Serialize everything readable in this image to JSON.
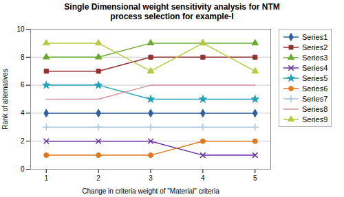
{
  "chart_data": {
    "type": "line",
    "title": "Single Dimensional weight sensitivity analysis for NTM\nprocess selection for example-I",
    "xlabel": "Change in criteria weight of \"Material\" criteria",
    "ylabel": "Rank of alternatives",
    "x": [
      1,
      2,
      3,
      4,
      5
    ],
    "series": [
      {
        "name": "Series1",
        "values": [
          4,
          4,
          4,
          4,
          4
        ],
        "color": "#2e5fa3",
        "marker": "diamond"
      },
      {
        "name": "Series2",
        "values": [
          7,
          7,
          8,
          8,
          8
        ],
        "color": "#943030",
        "marker": "square"
      },
      {
        "name": "Series3",
        "values": [
          8,
          8,
          9,
          9,
          9
        ],
        "color": "#6aaa30",
        "marker": "triangle"
      },
      {
        "name": "Series4",
        "values": [
          2,
          2,
          2,
          1,
          1
        ],
        "color": "#6a30a8",
        "marker": "x"
      },
      {
        "name": "Series5",
        "values": [
          6,
          6,
          5,
          5,
          5
        ],
        "color": "#20a0b8",
        "marker": "star"
      },
      {
        "name": "Series6",
        "values": [
          1,
          1,
          1,
          2,
          2
        ],
        "color": "#e07820",
        "marker": "circle"
      },
      {
        "name": "Series7",
        "values": [
          3,
          3,
          3,
          3,
          3
        ],
        "color": "#a8c8e8",
        "marker": "plus"
      },
      {
        "name": "Series8",
        "values": [
          5,
          5,
          6,
          6,
          6
        ],
        "color": "#d8909a",
        "marker": "none"
      },
      {
        "name": "Series9",
        "values": [
          9,
          9,
          7,
          9,
          7
        ],
        "color": "#b8c840",
        "marker": "triangle"
      }
    ],
    "xlim": [
      0.7,
      5.3
    ],
    "ylim": [
      0,
      10
    ],
    "xticks": [
      1,
      2,
      3,
      4,
      5
    ],
    "yticks": [
      0,
      2,
      4,
      6,
      8,
      10
    ],
    "grid": "y",
    "legend": "right"
  }
}
